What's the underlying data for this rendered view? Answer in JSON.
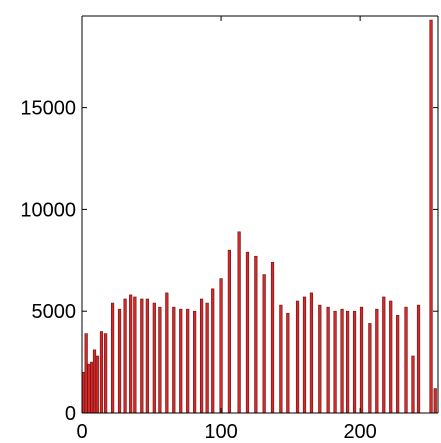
{
  "chart_data": {
    "type": "bar",
    "title": "",
    "xlabel": "",
    "ylabel": "",
    "xlim": [
      0,
      256
    ],
    "ylim": [
      0,
      19500
    ],
    "xticks": [
      0,
      100,
      200
    ],
    "yticks": [
      0,
      5000,
      10000,
      15000
    ],
    "xtick_labels": [
      "0",
      "100",
      "200"
    ],
    "ytick_labels": [
      "0",
      "5000",
      "10000",
      "15000"
    ],
    "grid": false,
    "legend": "none",
    "bar_color": "#d42a2a",
    "bar_edge_color": "#6b1010",
    "x": [
      1,
      3,
      5,
      7,
      9,
      11,
      14,
      17,
      22,
      27,
      31,
      35,
      38,
      43,
      47,
      52,
      56,
      61,
      66,
      71,
      76,
      81,
      86,
      90,
      94,
      100,
      106,
      113,
      119,
      125,
      131,
      137,
      143,
      148,
      155,
      160,
      165,
      171,
      177,
      182,
      187,
      191,
      196,
      201,
      207,
      212,
      217,
      222,
      227,
      233,
      238,
      242,
      251,
      254
    ],
    "values": [
      2000,
      3900,
      2400,
      2500,
      3100,
      2800,
      4000,
      3900,
      5400,
      5100,
      5600,
      5800,
      5700,
      5600,
      5600,
      5400,
      5200,
      5900,
      5200,
      5100,
      5100,
      5000,
      5600,
      5400,
      6100,
      6600,
      8000,
      8900,
      7900,
      7700,
      6800,
      7400,
      5300,
      4900,
      5500,
      5700,
      5900,
      5300,
      5200,
      5000,
      5100,
      5000,
      5000,
      5200,
      4400,
      5100,
      5700,
      5500,
      4800,
      5200,
      2800,
      5300,
      19300,
      1200
    ]
  }
}
